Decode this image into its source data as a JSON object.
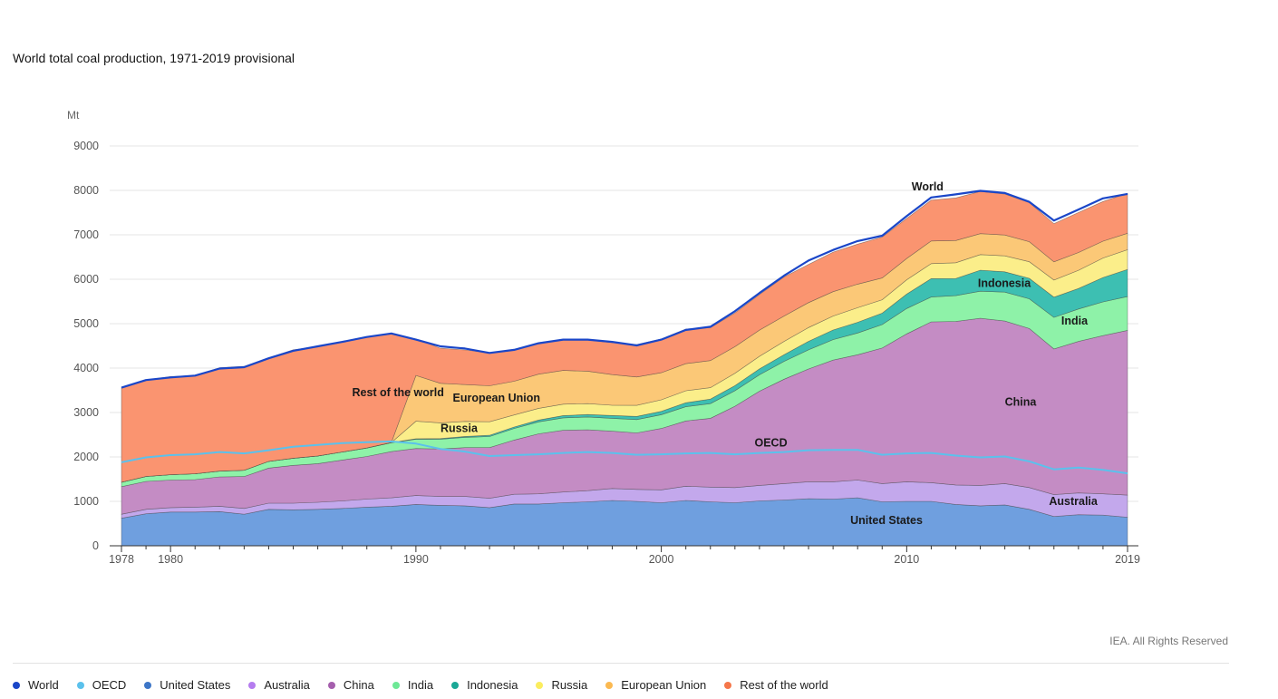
{
  "title": "World total coal production, 1971-2019 provisional",
  "unit": "Mt",
  "credit": "IEA. All Rights Reserved",
  "chart_data": {
    "type": "area",
    "stacked": true,
    "title": "World total coal production, 1971-2019 provisional",
    "ylabel": "Mt",
    "ylim": [
      0,
      9000
    ],
    "yticks": [
      0,
      1000,
      2000,
      3000,
      4000,
      5000,
      6000,
      7000,
      8000,
      9000
    ],
    "xlim": [
      1978,
      2019
    ],
    "xticks": [
      1978,
      1980,
      1990,
      2000,
      2010,
      2019
    ],
    "grid": true,
    "legend_position": "bottom",
    "x": [
      1978,
      1979,
      1980,
      1981,
      1982,
      1983,
      1984,
      1985,
      1986,
      1987,
      1988,
      1989,
      1990,
      1991,
      1992,
      1993,
      1994,
      1995,
      1996,
      1997,
      1998,
      1999,
      2000,
      2001,
      2002,
      2003,
      2004,
      2005,
      2006,
      2007,
      2008,
      2009,
      2010,
      2011,
      2012,
      2013,
      2014,
      2015,
      2016,
      2017,
      2018,
      2019
    ],
    "series": [
      {
        "name": "United States",
        "color": "#6f9fdf",
        "values": [
          620,
          720,
          760,
          760,
          770,
          710,
          820,
          810,
          820,
          840,
          870,
          890,
          930,
          910,
          900,
          860,
          940,
          940,
          970,
          990,
          1020,
          1000,
          970,
          1020,
          990,
          970,
          1010,
          1030,
          1060,
          1050,
          1080,
          990,
          1000,
          1000,
          930,
          900,
          920,
          820,
          660,
          700,
          690,
          640
        ]
      },
      {
        "name": "Australia",
        "color": "#c3a8ec",
        "values": [
          90,
          100,
          100,
          110,
          120,
          130,
          140,
          150,
          160,
          170,
          180,
          190,
          200,
          200,
          210,
          210,
          220,
          230,
          240,
          250,
          270,
          270,
          290,
          320,
          330,
          340,
          350,
          370,
          380,
          390,
          400,
          410,
          440,
          420,
          440,
          460,
          480,
          490,
          490,
          490,
          480,
          500
        ]
      },
      {
        "name": "China",
        "color": "#c48cc4",
        "values": [
          620,
          630,
          620,
          620,
          660,
          720,
          790,
          850,
          870,
          920,
          960,
          1040,
          1060,
          1070,
          1100,
          1140,
          1220,
          1350,
          1390,
          1370,
          1290,
          1270,
          1380,
          1470,
          1550,
          1830,
          2120,
          2350,
          2540,
          2740,
          2820,
          3050,
          3330,
          3620,
          3680,
          3760,
          3660,
          3580,
          3280,
          3410,
          3560,
          3710
        ]
      },
      {
        "name": "India",
        "color": "#8ef2a8",
        "values": [
          100,
          110,
          120,
          130,
          130,
          140,
          150,
          160,
          170,
          180,
          190,
          200,
          210,
          220,
          230,
          250,
          260,
          270,
          280,
          290,
          290,
          300,
          310,
          320,
          330,
          350,
          370,
          400,
          430,
          460,
          490,
          530,
          570,
          560,
          580,
          610,
          650,
          670,
          710,
          730,
          760,
          760
        ]
      },
      {
        "name": "Indonesia",
        "color": "#3dbfb2",
        "values": [
          1,
          1,
          1,
          1,
          1,
          1,
          1,
          2,
          2,
          2,
          3,
          4,
          10,
          14,
          22,
          27,
          33,
          41,
          50,
          55,
          62,
          72,
          77,
          90,
          103,
          114,
          132,
          152,
          193,
          217,
          240,
          256,
          325,
          415,
          386,
          474,
          458,
          461,
          456,
          461,
          548,
          610
        ]
      },
      {
        "name": "Russia",
        "color": "#fbee8a",
        "values": [
          0,
          0,
          0,
          0,
          0,
          0,
          0,
          0,
          0,
          0,
          0,
          0,
          395,
          353,
          337,
          305,
          272,
          262,
          257,
          245,
          232,
          249,
          258,
          270,
          256,
          277,
          283,
          299,
          310,
          314,
          329,
          302,
          322,
          337,
          355,
          352,
          358,
          373,
          386,
          412,
          440,
          445
        ]
      },
      {
        "name": "European Union",
        "color": "#fbc877",
        "values": [
          0,
          0,
          0,
          0,
          0,
          0,
          0,
          0,
          0,
          0,
          0,
          0,
          1030,
          890,
          830,
          810,
          760,
          770,
          760,
          730,
          690,
          640,
          610,
          610,
          610,
          600,
          590,
          570,
          560,
          550,
          530,
          490,
          480,
          510,
          500,
          470,
          470,
          450,
          410,
          400,
          380,
          370
        ]
      },
      {
        "name": "Rest of the world",
        "color": "#fa9470",
        "values": [
          2130,
          2170,
          2210,
          2210,
          2330,
          2340,
          2330,
          2440,
          2460,
          2480,
          2490,
          2440,
          820,
          790,
          780,
          740,
          700,
          710,
          700,
          700,
          720,
          730,
          760,
          780,
          740,
          760,
          800,
          880,
          860,
          890,
          900,
          920,
          900,
          920,
          960,
          950,
          920,
          880,
          860,
          900,
          890,
          900
        ]
      }
    ],
    "lines": [
      {
        "name": "World",
        "color": "#1a46c8",
        "values": [
          3560,
          3730,
          3790,
          3830,
          3990,
          4020,
          4220,
          4390,
          4490,
          4590,
          4700,
          4780,
          4640,
          4490,
          4440,
          4340,
          4410,
          4560,
          4640,
          4640,
          4590,
          4510,
          4640,
          4860,
          4930,
          5280,
          5690,
          6080,
          6420,
          6660,
          6860,
          6980,
          7420,
          7840,
          7910,
          7990,
          7940,
          7740,
          7320,
          7570,
          7820,
          7920
        ]
      },
      {
        "name": "OECD",
        "color": "#5bc1ec",
        "values": [
          1880,
          1990,
          2040,
          2060,
          2110,
          2080,
          2150,
          2230,
          2270,
          2310,
          2330,
          2350,
          2300,
          2180,
          2120,
          2020,
          2040,
          2060,
          2090,
          2110,
          2090,
          2050,
          2060,
          2080,
          2090,
          2060,
          2090,
          2110,
          2150,
          2160,
          2160,
          2050,
          2080,
          2090,
          2030,
          1990,
          2010,
          1900,
          1720,
          1760,
          1710,
          1630
        ]
      }
    ],
    "annotations": [
      {
        "text": "World",
        "x": 2010.2,
        "y": 8000
      },
      {
        "text": "Rest of the world",
        "x": 1987.4,
        "y": 3370
      },
      {
        "text": "European Union",
        "x": 1991.5,
        "y": 3240
      },
      {
        "text": "Russia",
        "x": 1991.0,
        "y": 2560
      },
      {
        "text": "OECD",
        "x": 2003.8,
        "y": 2230
      },
      {
        "text": "Indonesia",
        "x": 2012.9,
        "y": 5830
      },
      {
        "text": "India",
        "x": 2016.3,
        "y": 4980
      },
      {
        "text": "China",
        "x": 2014.0,
        "y": 3150
      },
      {
        "text": "Australia",
        "x": 2015.8,
        "y": 920
      },
      {
        "text": "United States",
        "x": 2007.7,
        "y": 490
      }
    ]
  },
  "legend": [
    {
      "label": "World",
      "color": "#1a46c8"
    },
    {
      "label": "OECD",
      "color": "#5bc1ec"
    },
    {
      "label": "United States",
      "color": "#3d76c7"
    },
    {
      "label": "Australia",
      "color": "#b57cef"
    },
    {
      "label": "China",
      "color": "#a55fad"
    },
    {
      "label": "India",
      "color": "#6ee896"
    },
    {
      "label": "Indonesia",
      "color": "#1aa896"
    },
    {
      "label": "Russia",
      "color": "#fbed5e"
    },
    {
      "label": "European Union",
      "color": "#fbb951"
    },
    {
      "label": "Rest of the world",
      "color": "#f5774a"
    }
  ]
}
